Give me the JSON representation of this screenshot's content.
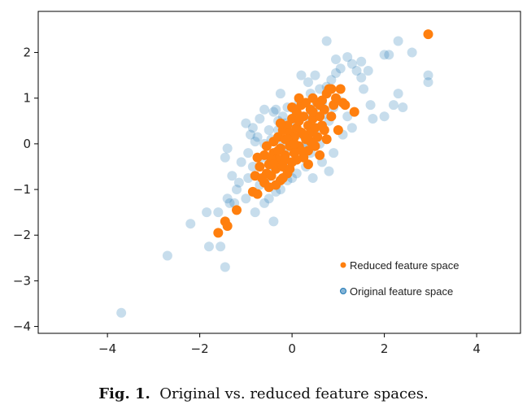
{
  "chart_data": {
    "type": "scatter",
    "title": "",
    "xlabel": "",
    "ylabel": "",
    "xlim": [
      -5.5,
      4.95
    ],
    "ylim": [
      -4.15,
      2.9
    ],
    "xticks": [
      "−4",
      "−2",
      "0",
      "2",
      "4"
    ],
    "xtick_values": [
      -4,
      -2,
      0,
      2,
      4
    ],
    "yticks": [
      "2",
      "1",
      "0",
      "−1",
      "−2",
      "−3",
      "−4"
    ],
    "ytick_values": [
      2,
      1,
      0,
      -1,
      -2,
      -3,
      -4
    ],
    "grid": false,
    "legend_position": "lower-right",
    "series": [
      {
        "name": "Original feature space",
        "color": "#1f77b4",
        "alpha": 0.25,
        "points": [
          [
            -3.7,
            -3.7
          ],
          [
            -2.7,
            -2.45
          ],
          [
            -2.2,
            -1.75
          ],
          [
            -1.85,
            -1.5
          ],
          [
            -1.8,
            -2.25
          ],
          [
            -1.55,
            -2.25
          ],
          [
            -1.45,
            -2.7
          ],
          [
            -1.6,
            -1.5
          ],
          [
            -1.35,
            -1.3
          ],
          [
            -1.25,
            -1.3
          ],
          [
            -1.4,
            -1.2
          ],
          [
            -1.2,
            -1.0
          ],
          [
            -1.0,
            -1.2
          ],
          [
            -0.8,
            -1.5
          ],
          [
            -1.3,
            -0.7
          ],
          [
            -1.45,
            -0.3
          ],
          [
            -1.4,
            -0.1
          ],
          [
            -1.1,
            -0.4
          ],
          [
            -0.95,
            -0.2
          ],
          [
            -0.85,
            -0.5
          ],
          [
            -0.7,
            -0.9
          ],
          [
            -0.6,
            -1.3
          ],
          [
            -0.4,
            -1.7
          ],
          [
            -1.0,
            0.45
          ],
          [
            -0.9,
            0.2
          ],
          [
            -0.75,
            0.15
          ],
          [
            -0.7,
            0.55
          ],
          [
            -0.6,
            0.75
          ],
          [
            -0.5,
            0.3
          ],
          [
            -0.4,
            0.7
          ],
          [
            -0.35,
            0.75
          ],
          [
            -0.25,
            1.1
          ],
          [
            -0.2,
            0.6
          ],
          [
            -0.1,
            0.8
          ],
          [
            0.05,
            0.75
          ],
          [
            0.15,
            0.9
          ],
          [
            0.2,
            1.5
          ],
          [
            0.35,
            1.35
          ],
          [
            0.5,
            1.5
          ],
          [
            0.6,
            1.2
          ],
          [
            0.75,
            1.25
          ],
          [
            0.85,
            1.4
          ],
          [
            0.95,
            1.55
          ],
          [
            1.05,
            1.65
          ],
          [
            1.2,
            1.9
          ],
          [
            1.3,
            1.75
          ],
          [
            1.4,
            1.6
          ],
          [
            1.5,
            1.45
          ],
          [
            1.55,
            1.2
          ],
          [
            0.75,
            2.25
          ],
          [
            0.95,
            1.85
          ],
          [
            1.5,
            1.8
          ],
          [
            1.65,
            1.6
          ],
          [
            2.0,
            1.95
          ],
          [
            2.1,
            1.95
          ],
          [
            2.3,
            2.25
          ],
          [
            2.6,
            2.0
          ],
          [
            2.95,
            1.5
          ],
          [
            2.95,
            1.35
          ],
          [
            2.3,
            1.1
          ],
          [
            2.4,
            0.8
          ],
          [
            2.2,
            0.85
          ],
          [
            2.0,
            0.6
          ],
          [
            1.75,
            0.55
          ],
          [
            1.7,
            0.85
          ],
          [
            1.2,
            0.6
          ],
          [
            0.8,
            0.5
          ],
          [
            1.1,
            0.2
          ],
          [
            0.6,
            0.0
          ],
          [
            0.4,
            -0.2
          ],
          [
            0.8,
            -0.6
          ],
          [
            0.65,
            -0.4
          ],
          [
            0.3,
            -0.5
          ],
          [
            0.1,
            -0.65
          ],
          [
            -0.1,
            -0.8
          ],
          [
            -0.25,
            -1.0
          ],
          [
            -0.5,
            -1.2
          ],
          [
            -0.55,
            -0.75
          ],
          [
            -0.6,
            0.0
          ],
          [
            -0.3,
            0.3
          ],
          [
            0.0,
            0.4
          ],
          [
            0.2,
            0.2
          ],
          [
            0.35,
            0.6
          ],
          [
            0.5,
            0.8
          ],
          [
            0.45,
            0.3
          ],
          [
            -0.15,
            -0.2
          ],
          [
            -0.05,
            0.1
          ],
          [
            0.25,
            -0.1
          ],
          [
            -0.8,
            0.05
          ],
          [
            -0.65,
            -0.3
          ],
          [
            -0.45,
            -0.6
          ],
          [
            -0.3,
            0.5
          ],
          [
            -0.15,
            0.45
          ],
          [
            0.4,
            1.1
          ],
          [
            0.65,
            0.9
          ],
          [
            0.9,
            0.8
          ],
          [
            1.3,
            0.35
          ],
          [
            0.9,
            -0.2
          ],
          [
            0.45,
            -0.75
          ],
          [
            0.0,
            -0.75
          ],
          [
            -0.35,
            -1.05
          ],
          [
            -0.95,
            -0.75
          ],
          [
            -1.15,
            -0.85
          ],
          [
            -0.85,
            0.35
          ],
          [
            -0.2,
            0.05
          ],
          [
            0.1,
            0.55
          ],
          [
            0.3,
            0.0
          ],
          [
            0.55,
            0.35
          ],
          [
            0.7,
            0.65
          ],
          [
            1.0,
            0.95
          ],
          [
            -0.05,
            -0.4
          ],
          [
            -0.45,
            0.1
          ]
        ]
      },
      {
        "name": "Reduced feature space",
        "color": "#ff7f0e",
        "alpha": 1,
        "points": [
          [
            -1.6,
            -1.95
          ],
          [
            -1.45,
            -1.7
          ],
          [
            -1.2,
            -1.45
          ],
          [
            -1.4,
            -1.8
          ],
          [
            -0.85,
            -1.05
          ],
          [
            -0.75,
            -1.1
          ],
          [
            -0.8,
            -0.7
          ],
          [
            -0.7,
            -0.5
          ],
          [
            -0.75,
            -0.3
          ],
          [
            -0.6,
            -0.85
          ],
          [
            -0.55,
            -0.65
          ],
          [
            -0.6,
            -0.25
          ],
          [
            -0.55,
            -0.05
          ],
          [
            -0.5,
            -0.45
          ],
          [
            -0.45,
            -0.7
          ],
          [
            -0.4,
            -0.2
          ],
          [
            -0.4,
            0.05
          ],
          [
            -0.35,
            -0.55
          ],
          [
            -0.3,
            -0.35
          ],
          [
            -0.3,
            0.15
          ],
          [
            -0.25,
            -0.8
          ],
          [
            -0.25,
            -0.1
          ],
          [
            -0.2,
            0.3
          ],
          [
            -0.2,
            -0.5
          ],
          [
            -0.15,
            -0.25
          ],
          [
            -0.15,
            0.1
          ],
          [
            -0.1,
            0.4
          ],
          [
            -0.1,
            -0.65
          ],
          [
            -0.05,
            -0.05
          ],
          [
            -0.05,
            0.25
          ],
          [
            0.0,
            -0.4
          ],
          [
            0.0,
            0.55
          ],
          [
            0.05,
            0.15
          ],
          [
            0.05,
            -0.2
          ],
          [
            0.1,
            0.35
          ],
          [
            0.1,
            0.7
          ],
          [
            0.15,
            -0.05
          ],
          [
            0.15,
            0.5
          ],
          [
            0.2,
            0.25
          ],
          [
            0.2,
            0.85
          ],
          [
            0.25,
            -0.3
          ],
          [
            0.25,
            0.6
          ],
          [
            0.3,
            0.1
          ],
          [
            0.3,
            0.9
          ],
          [
            0.35,
            0.4
          ],
          [
            0.35,
            -0.15
          ],
          [
            0.4,
            0.75
          ],
          [
            0.4,
            0.25
          ],
          [
            0.45,
            1.0
          ],
          [
            0.45,
            0.55
          ],
          [
            0.5,
            -0.05
          ],
          [
            0.5,
            0.35
          ],
          [
            0.55,
            0.9
          ],
          [
            0.55,
            0.15
          ],
          [
            0.6,
            0.6
          ],
          [
            0.65,
            0.4
          ],
          [
            0.65,
            0.95
          ],
          [
            0.7,
            0.75
          ],
          [
            0.75,
            1.1
          ],
          [
            0.8,
            1.2
          ],
          [
            0.85,
            0.6
          ],
          [
            0.9,
            0.85
          ],
          [
            0.95,
            1.0
          ],
          [
            1.0,
            0.3
          ],
          [
            1.05,
            1.2
          ],
          [
            1.1,
            0.9
          ],
          [
            1.15,
            0.85
          ],
          [
            1.35,
            0.7
          ],
          [
            0.75,
            0.1
          ],
          [
            0.6,
            -0.25
          ],
          [
            0.35,
            -0.45
          ],
          [
            0.1,
            -0.35
          ],
          [
            -0.05,
            -0.55
          ],
          [
            -0.2,
            -0.75
          ],
          [
            -0.35,
            -0.9
          ],
          [
            -0.5,
            -0.95
          ],
          [
            -0.65,
            -0.75
          ],
          [
            -0.45,
            -0.35
          ],
          [
            -0.25,
            0.45
          ],
          [
            0.0,
            0.8
          ],
          [
            0.15,
            1.0
          ],
          [
            -0.1,
            0.1
          ],
          [
            0.2,
            -0.15
          ],
          [
            0.4,
            0.05
          ],
          [
            0.7,
            0.3
          ],
          [
            0.85,
            1.2
          ],
          [
            2.95,
            2.4
          ],
          [
            -0.3,
            -0.15
          ],
          [
            -0.15,
            -0.35
          ],
          [
            0.05,
            0.0
          ],
          [
            0.25,
            0.2
          ],
          [
            -0.4,
            -0.45
          ],
          [
            0.45,
            0.7
          ],
          [
            0.6,
            0.85
          ]
        ]
      }
    ]
  },
  "caption": {
    "label": "Fig. 1.",
    "text": "Original vs. reduced feature spaces."
  }
}
